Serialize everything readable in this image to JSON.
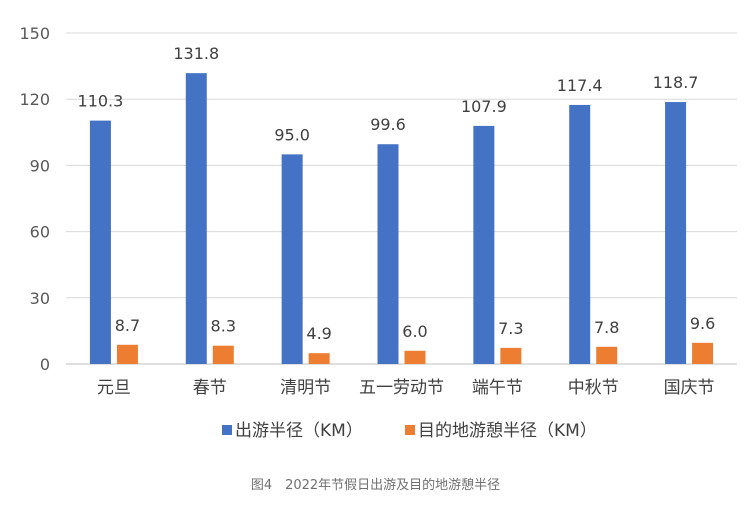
{
  "chart_data": {
    "type": "bar",
    "categories": [
      "元旦",
      "春节",
      "清明节",
      "五一劳动节",
      "端午节",
      "中秋节",
      "国庆节"
    ],
    "series": [
      {
        "name": "出游半径（KM）",
        "color": "#4472C4",
        "values": [
          110.3,
          131.8,
          95.0,
          99.6,
          107.9,
          117.4,
          118.7
        ],
        "labels": [
          "110.3",
          "131.8",
          "95.0",
          "99.6",
          "107.9",
          "117.4",
          "118.7"
        ]
      },
      {
        "name": "目的地游憩半径（KM）",
        "color": "#ED7D31",
        "values": [
          8.7,
          8.3,
          4.9,
          6.0,
          7.3,
          7.8,
          9.6
        ],
        "labels": [
          "8.7",
          "8.3",
          "4.9",
          "6.0",
          "7.3",
          "7.8",
          "9.6"
        ]
      }
    ],
    "ylim": [
      0,
      150
    ],
    "yticks": [
      "0",
      "30",
      "60",
      "90",
      "120",
      "150"
    ],
    "ytick_values": [
      0,
      30,
      60,
      90,
      120,
      150
    ],
    "grid": true,
    "legend_position": "bottom"
  },
  "caption": "图4　2022年节假日出游及目的地游憩半径"
}
